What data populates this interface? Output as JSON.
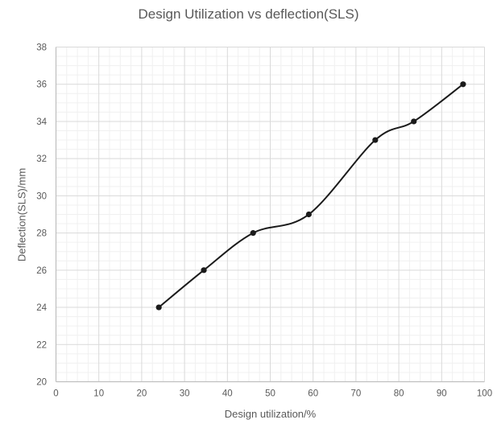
{
  "chart_data": {
    "type": "line",
    "title": "Design Utilization vs deflection(SLS)",
    "xlabel": "Design utilization/%",
    "ylabel": "Deflection(SLS)/mm",
    "x": [
      24,
      34.5,
      46,
      59,
      74.5,
      83.5,
      95
    ],
    "y": [
      24,
      26,
      28,
      29,
      33,
      34,
      36
    ],
    "xlim": [
      0,
      100
    ],
    "ylim": [
      20,
      38
    ],
    "xticks": [
      0,
      10,
      20,
      30,
      40,
      50,
      60,
      70,
      80,
      90,
      100
    ],
    "yticks": [
      20,
      22,
      24,
      26,
      28,
      30,
      32,
      34,
      36,
      38
    ],
    "x_minor_unit": 2.5,
    "y_minor_unit": 0.5,
    "smooth": true,
    "markers": true,
    "grid": true,
    "legend": false,
    "colors": {
      "line": "#1b1b1b",
      "marker": "#1b1b1b",
      "grid_major": "#d9d9d9",
      "grid_minor": "#f0f0f0",
      "axis_line": "#bfbfbf",
      "text": "#595959",
      "background": "#ffffff"
    }
  }
}
